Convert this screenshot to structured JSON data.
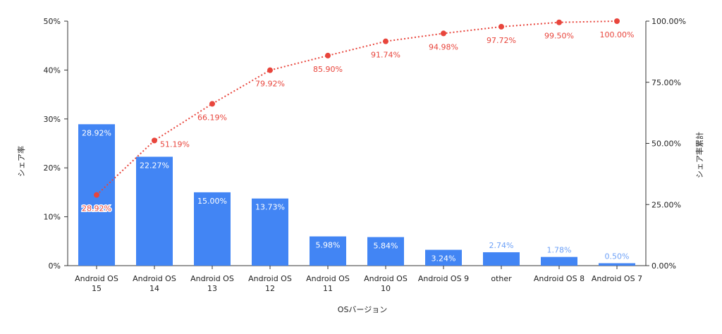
{
  "colors": {
    "bar": "#4285f4",
    "line": "#e8453c",
    "bar_label_inside": "#ffffff",
    "bar_label_outside": "#6ea1f7",
    "axis": "#333333",
    "text": "#222222"
  },
  "chart_data": {
    "type": "bar",
    "combo_overlay": "line",
    "categories": [
      "Android OS\n15",
      "Android OS\n14",
      "Android OS\n13",
      "Android OS\n12",
      "Android OS\n11",
      "Android OS\n10",
      "Android OS 9",
      "other",
      "Android OS 8",
      "Android OS 7"
    ],
    "xlabel": "OSバージョン",
    "ylabel": "シェア率",
    "y2label": "シェア率累計",
    "ylim": [
      0,
      50
    ],
    "y2lim": [
      0,
      100
    ],
    "yticks": [
      "0%",
      "10%",
      "20%",
      "30%",
      "40%",
      "50%"
    ],
    "y2ticks": [
      "0.00%",
      "25.00%",
      "50.00%",
      "75.00%",
      "100.00%"
    ],
    "grid": false,
    "legend": "none",
    "series": [
      {
        "type": "bar",
        "axis": "left",
        "values": [
          28.92,
          22.27,
          15.0,
          13.73,
          5.98,
          5.84,
          3.24,
          2.74,
          1.78,
          0.5
        ],
        "labels": [
          "28.92%",
          "22.27%",
          "15.00%",
          "13.73%",
          "5.98%",
          "5.84%",
          "3.24%",
          "2.74%",
          "1.78%",
          "0.50%"
        ]
      },
      {
        "type": "line",
        "style": "dotted",
        "axis": "right",
        "values": [
          28.92,
          51.19,
          66.19,
          79.92,
          85.9,
          91.74,
          94.98,
          97.72,
          99.5,
          100.0
        ],
        "labels": [
          "28.92%",
          "51.19%",
          "66.19%",
          "79.92%",
          "85.90%",
          "91.74%",
          "94.98%",
          "97.72%",
          "99.50%",
          "100.00%"
        ]
      }
    ]
  }
}
